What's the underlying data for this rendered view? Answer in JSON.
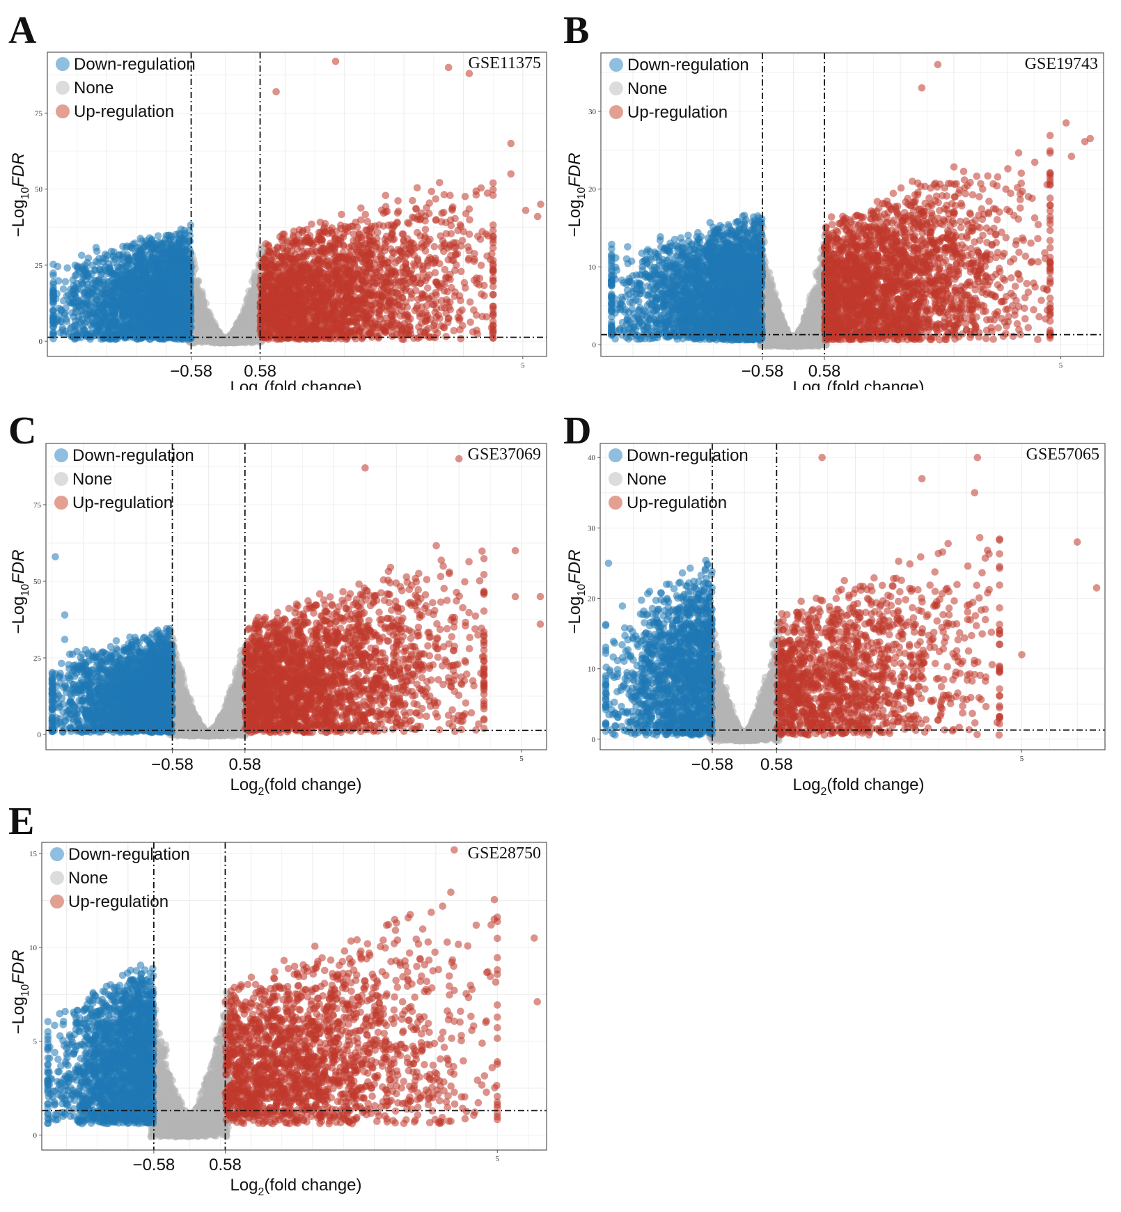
{
  "legend": {
    "items": [
      {
        "label": "Down-regulation",
        "color": "#8fbedf"
      },
      {
        "label": "None",
        "color": "#dcdcdc"
      },
      {
        "label": "Up-regulation",
        "color": "#e2a093"
      }
    ]
  },
  "colors": {
    "down": "#1f78b4",
    "none": "#b4b4b4",
    "up": "#c0392b"
  },
  "chart_data": [
    {
      "type": "scatter",
      "panel": "A",
      "dataset": "GSE11375",
      "xlabel_main": "Log",
      "xlabel_sub": "2",
      "xlabel_rest": "(fold change)",
      "ylabel_pre": "−Log",
      "ylabel_sub": "10",
      "ylabel_post": "FDR",
      "xlim": [
        -3.0,
        5.4
      ],
      "ylim": [
        -5,
        95
      ],
      "yticks": [
        0,
        25,
        50,
        75
      ],
      "xtick_labels": [
        {
          "value": -0.58,
          "label": "−0.58"
        },
        {
          "value": 0.58,
          "label": "0.58"
        }
      ],
      "xtick_minor": [
        {
          "value": 5,
          "label": "5"
        }
      ],
      "threshold_x": [
        -0.58,
        0.58
      ],
      "threshold_y": 1.3,
      "seed": 11,
      "counts": {
        "down": 2400,
        "up": 2300,
        "none": 2800
      },
      "spread": {
        "down": [
          -2.9,
          45
        ],
        "up": [
          4.5,
          55
        ]
      },
      "outliers": [
        {
          "x": 1.85,
          "y": 92,
          "type": "up"
        },
        {
          "x": 3.75,
          "y": 90,
          "type": "up"
        },
        {
          "x": 4.1,
          "y": 88,
          "type": "up"
        },
        {
          "x": 0.85,
          "y": 82,
          "type": "up"
        },
        {
          "x": 4.8,
          "y": 65,
          "type": "up"
        },
        {
          "x": 4.8,
          "y": 55,
          "type": "up"
        },
        {
          "x": 5.05,
          "y": 43,
          "type": "up"
        },
        {
          "x": 5.3,
          "y": 45,
          "type": "up"
        },
        {
          "x": 5.25,
          "y": 41,
          "type": "up"
        },
        {
          "x": 4.4,
          "y": 28,
          "type": "up"
        }
      ]
    },
    {
      "type": "scatter",
      "panel": "B",
      "dataset": "GSE19743",
      "xlabel_main": "Log",
      "xlabel_sub": "2",
      "xlabel_rest": "(fold change)",
      "ylabel_pre": "−Log",
      "ylabel_sub": "10",
      "ylabel_post": "FDR",
      "xlim": [
        -3.6,
        5.8
      ],
      "ylim": [
        -1.5,
        37.5
      ],
      "yticks": [
        0,
        10,
        20,
        30
      ],
      "xtick_labels": [
        {
          "value": -0.58,
          "label": "−0.58"
        },
        {
          "value": 0.58,
          "label": "0.58"
        }
      ],
      "xtick_minor": [
        {
          "value": 5,
          "label": "5"
        }
      ],
      "threshold_x": [
        -0.58,
        0.58
      ],
      "threshold_y": 1.3,
      "seed": 23,
      "counts": {
        "down": 2600,
        "up": 2400,
        "none": 2800
      },
      "spread": {
        "down": [
          -3.4,
          20
        ],
        "up": [
          4.8,
          26
        ]
      },
      "outliers": [
        {
          "x": 2.7,
          "y": 36,
          "type": "up"
        },
        {
          "x": 2.4,
          "y": 33,
          "type": "up"
        },
        {
          "x": 5.1,
          "y": 28.5,
          "type": "up"
        },
        {
          "x": 5.55,
          "y": 26.5,
          "type": "up"
        },
        {
          "x": 5.2,
          "y": 24.2,
          "type": "up"
        },
        {
          "x": 5.45,
          "y": 26.1,
          "type": "up"
        },
        {
          "x": 4.7,
          "y": 11.8,
          "type": "up"
        },
        {
          "x": -3.4,
          "y": 12.9,
          "type": "down"
        },
        {
          "x": -3.1,
          "y": 12.6,
          "type": "down"
        }
      ]
    },
    {
      "type": "scatter",
      "panel": "C",
      "dataset": "GSE37069",
      "xlabel_main": "Log",
      "xlabel_sub": "2",
      "xlabel_rest": "(fold change)",
      "ylabel_pre": "−Log",
      "ylabel_sub": "10",
      "ylabel_post": "FDR",
      "xlim": [
        -2.6,
        5.4
      ],
      "ylim": [
        -5,
        95
      ],
      "yticks": [
        0,
        25,
        50,
        75
      ],
      "xtick_labels": [
        {
          "value": -0.58,
          "label": "−0.58"
        },
        {
          "value": 0.58,
          "label": "0.58"
        }
      ],
      "xtick_minor": [
        {
          "value": 5,
          "label": "5"
        }
      ],
      "threshold_x": [
        -0.58,
        0.58
      ],
      "threshold_y": 1.3,
      "seed": 37,
      "counts": {
        "down": 2300,
        "up": 2400,
        "none": 2800
      },
      "spread": {
        "down": [
          -2.5,
          42
        ],
        "up": [
          4.4,
          62
        ]
      },
      "outliers": [
        {
          "x": 4.0,
          "y": 90,
          "type": "up"
        },
        {
          "x": 2.5,
          "y": 87,
          "type": "up"
        },
        {
          "x": 4.9,
          "y": 60,
          "type": "up"
        },
        {
          "x": 4.9,
          "y": 45,
          "type": "up"
        },
        {
          "x": 5.3,
          "y": 45,
          "type": "up"
        },
        {
          "x": 5.3,
          "y": 36,
          "type": "up"
        },
        {
          "x": 4.35,
          "y": 20,
          "type": "up"
        },
        {
          "x": -2.45,
          "y": 58,
          "type": "down"
        },
        {
          "x": -2.3,
          "y": 39,
          "type": "down"
        },
        {
          "x": -2.3,
          "y": 31,
          "type": "down"
        },
        {
          "x": -2.3,
          "y": 16,
          "type": "down"
        }
      ]
    },
    {
      "type": "scatter",
      "panel": "D",
      "dataset": "GSE57065",
      "xlabel_main": "Log",
      "xlabel_sub": "2",
      "xlabel_rest": "(fold change)",
      "ylabel_pre": "−Log",
      "ylabel_sub": "10",
      "ylabel_post": "FDR",
      "xlim": [
        -2.6,
        6.5
      ],
      "ylim": [
        -1.5,
        42
      ],
      "yticks": [
        0,
        10,
        20,
        30,
        40
      ],
      "xtick_labels": [
        {
          "value": -0.58,
          "label": "−0.58"
        },
        {
          "value": 0.58,
          "label": "0.58"
        }
      ],
      "xtick_minor": [
        {
          "value": 5,
          "label": "5"
        }
      ],
      "threshold_x": [
        -0.58,
        0.58
      ],
      "threshold_y": 1.3,
      "seed": 57,
      "counts": {
        "down": 1500,
        "up": 1400,
        "none": 2400
      },
      "spread": {
        "down": [
          -2.5,
          30
        ],
        "up": [
          4.6,
          30
        ]
      },
      "outliers": [
        {
          "x": 1.4,
          "y": 40,
          "type": "up"
        },
        {
          "x": 4.2,
          "y": 40,
          "type": "up"
        },
        {
          "x": 3.2,
          "y": 37,
          "type": "up"
        },
        {
          "x": 4.15,
          "y": 35,
          "type": "up"
        },
        {
          "x": 6.0,
          "y": 28,
          "type": "up"
        },
        {
          "x": 6.35,
          "y": 21.5,
          "type": "up"
        },
        {
          "x": 5.0,
          "y": 12,
          "type": "up"
        },
        {
          "x": -2.45,
          "y": 25,
          "type": "down"
        }
      ]
    },
    {
      "type": "scatter",
      "panel": "E",
      "dataset": "GSE28750",
      "xlabel_main": "Log",
      "xlabel_sub": "2",
      "xlabel_rest": "(fold change)",
      "ylabel_pre": "−Log",
      "ylabel_sub": "10",
      "ylabel_post": "FDR",
      "xlim": [
        -2.4,
        5.8
      ],
      "ylim": [
        -0.8,
        15.6
      ],
      "yticks": [
        0,
        5,
        10,
        15
      ],
      "xtick_labels": [
        {
          "value": -0.58,
          "label": "−0.58"
        },
        {
          "value": 0.58,
          "label": "0.58"
        }
      ],
      "xtick_minor": [
        {
          "value": 5,
          "label": "5"
        }
      ],
      "threshold_x": [
        -0.58,
        0.58
      ],
      "threshold_y": 1.3,
      "seed": 28,
      "counts": {
        "down": 1900,
        "up": 1900,
        "none": 2600
      },
      "spread": {
        "down": [
          -2.3,
          10.5
        ],
        "up": [
          5.0,
          12.5
        ]
      },
      "outliers": [
        {
          "x": 4.3,
          "y": 15.2,
          "type": "up"
        },
        {
          "x": 4.95,
          "y": 11.5,
          "type": "up"
        },
        {
          "x": 4.9,
          "y": 11.2,
          "type": "up"
        },
        {
          "x": 5.6,
          "y": 10.5,
          "type": "up"
        },
        {
          "x": 5.65,
          "y": 7.1,
          "type": "up"
        },
        {
          "x": 3.9,
          "y": 4.8,
          "type": "up"
        },
        {
          "x": -2.3,
          "y": 5.5,
          "type": "down"
        }
      ]
    }
  ]
}
